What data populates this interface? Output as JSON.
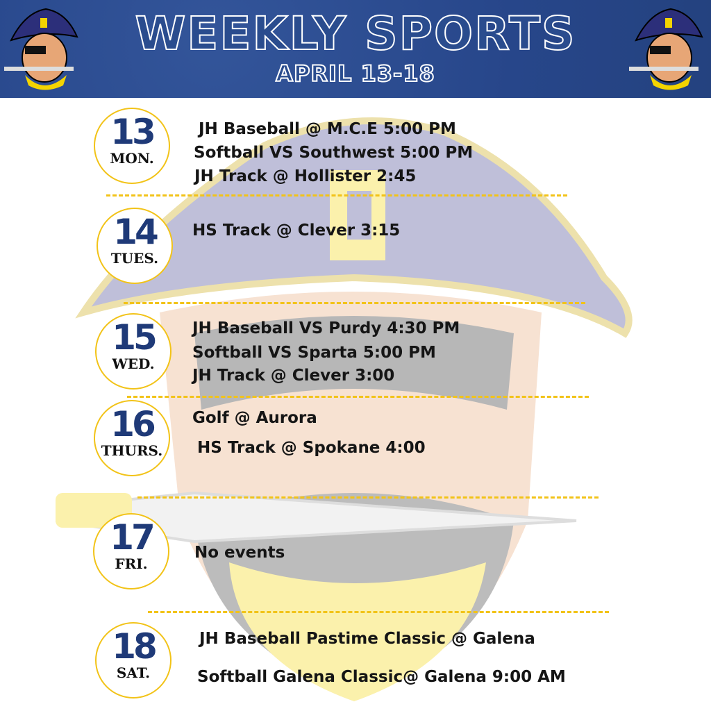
{
  "header": {
    "title": "WEEKLY SPORTS",
    "subtitle": "APRIL 13-18"
  },
  "colors": {
    "banner": "#2a4c8e",
    "accent_gold": "#f2c318",
    "number_blue": "#1f3a78"
  },
  "days": [
    {
      "number": "13",
      "label": "MON.",
      "events": [
        "JH Baseball @ M.C.E 5:00 PM",
        "Softball VS Southwest 5:00 PM",
        "JH Track @ Hollister 2:45"
      ]
    },
    {
      "number": "14",
      "label": "TUES.",
      "events": [
        "HS Track @ Clever 3:15"
      ]
    },
    {
      "number": "15",
      "label": "WED.",
      "events": [
        "JH Baseball VS Purdy 4:30 PM",
        "Softball VS Sparta 5:00 PM",
        "JH Track @ Clever 3:00"
      ]
    },
    {
      "number": "16",
      "label": "THURS.",
      "events": [
        "Golf @ Aurora",
        "HS Track @ Spokane 4:00"
      ]
    },
    {
      "number": "17",
      "label": "FRI.",
      "events": [
        "No events"
      ]
    },
    {
      "number": "18",
      "label": "SAT.",
      "events": [
        "JH Baseball Pastime Classic @ Galena",
        "Softball Galena Classic@ Galena 9:00 AM"
      ]
    }
  ]
}
